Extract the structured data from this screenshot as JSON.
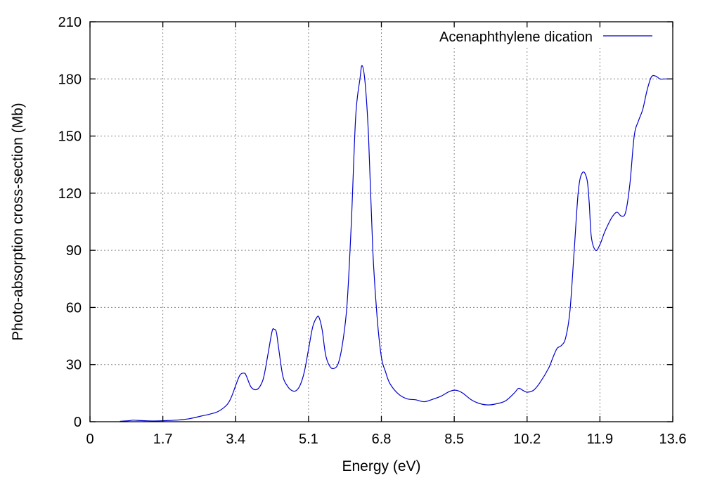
{
  "chart_data": {
    "type": "line",
    "title": "",
    "xlabel": "Energy (eV)",
    "ylabel": "Photo-absorption cross-section (Mb)",
    "xlim": [
      0,
      13.6
    ],
    "ylim": [
      0,
      210
    ],
    "x_ticks": [
      "0",
      "1.7",
      "3.4",
      "5.1",
      "6.8",
      "8.5",
      "10.2",
      "11.9",
      "13.6"
    ],
    "y_ticks": [
      "0",
      "30",
      "60",
      "90",
      "120",
      "150",
      "180",
      "210"
    ],
    "grid": true,
    "legend_position": "top-right",
    "series": [
      {
        "name": "Acenaphthylene dication",
        "color": "#0000cc",
        "x": [
          0.7,
          0.9,
          1.0,
          1.1,
          1.3,
          1.5,
          1.7,
          2.0,
          2.3,
          2.6,
          2.8,
          3.0,
          3.2,
          3.3,
          3.4,
          3.5,
          3.6,
          3.65,
          3.75,
          3.85,
          3.95,
          4.05,
          4.15,
          4.25,
          4.3,
          4.35,
          4.4,
          4.5,
          4.6,
          4.7,
          4.8,
          4.9,
          5.0,
          5.1,
          5.2,
          5.3,
          5.35,
          5.42,
          5.5,
          5.6,
          5.7,
          5.8,
          5.9,
          6.0,
          6.1,
          6.2,
          6.3,
          6.35,
          6.42,
          6.5,
          6.6,
          6.7,
          6.8,
          6.9,
          7.0,
          7.2,
          7.4,
          7.6,
          7.8,
          8.0,
          8.2,
          8.4,
          8.55,
          8.7,
          8.9,
          9.1,
          9.3,
          9.5,
          9.7,
          9.9,
          10.0,
          10.1,
          10.2,
          10.35,
          10.5,
          10.7,
          10.8,
          10.9,
          11.0,
          11.1,
          11.2,
          11.3,
          11.4,
          11.5,
          11.6,
          11.65,
          11.7,
          11.8,
          11.9,
          12.0,
          12.1,
          12.2,
          12.3,
          12.4,
          12.5,
          12.6,
          12.7,
          12.8,
          12.9,
          13.0,
          13.1,
          13.2,
          13.3,
          13.4,
          13.45,
          13.55,
          13.6
        ],
        "y": [
          0.2,
          0.5,
          0.8,
          0.7,
          0.5,
          0.4,
          0.5,
          0.8,
          1.5,
          3.0,
          4.0,
          5.5,
          9.0,
          13.0,
          19.0,
          24.5,
          25.5,
          24.0,
          18.5,
          16.8,
          18.0,
          23.0,
          35.0,
          47.5,
          48.5,
          47.0,
          39.0,
          24.0,
          19.0,
          16.5,
          16.2,
          19.0,
          26.0,
          38.0,
          50.0,
          55.0,
          54.5,
          48.0,
          35.0,
          29.0,
          28.0,
          31.0,
          42.0,
          62.0,
          105.0,
          160.0,
          180.0,
          187.0,
          178.0,
          150.0,
          90.0,
          55.0,
          34.0,
          26.0,
          20.0,
          14.5,
          12.0,
          11.5,
          10.5,
          11.8,
          13.5,
          16.0,
          16.5,
          15.0,
          11.5,
          9.5,
          8.8,
          9.5,
          11.0,
          15.0,
          17.5,
          16.5,
          15.5,
          16.5,
          20.5,
          28.0,
          33.5,
          38.5,
          40.0,
          44.0,
          58.0,
          90.0,
          122.0,
          131.0,
          127.0,
          115.0,
          97.0,
          90.0,
          93.0,
          99.0,
          104.0,
          108.0,
          110.0,
          108.0,
          110.0,
          125.0,
          150.0,
          158.0,
          164.0,
          174.0,
          181.0,
          181.5,
          180.0,
          180.0,
          180.0,
          180.0,
          180.0
        ]
      }
    ]
  }
}
